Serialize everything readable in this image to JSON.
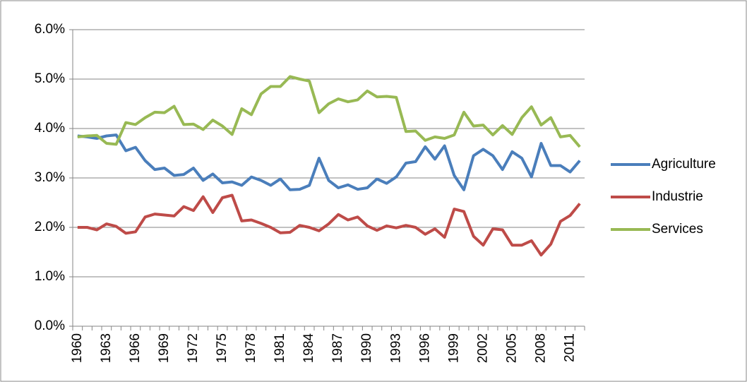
{
  "chart_data": {
    "type": "line",
    "categories": [
      "1960",
      null,
      null,
      "1963",
      null,
      null,
      "1966",
      null,
      null,
      "1969",
      null,
      null,
      "1972",
      null,
      null,
      "1975",
      null,
      null,
      "1978",
      null,
      null,
      "1981",
      null,
      null,
      "1984",
      null,
      null,
      "1987",
      null,
      null,
      "1990",
      null,
      null,
      "1993",
      null,
      null,
      "1996",
      null,
      null,
      "1999",
      null,
      null,
      "2002",
      null,
      null,
      "2005",
      null,
      null,
      "2008",
      null,
      null,
      "2011",
      null
    ],
    "series": [
      {
        "name": "Agriculture",
        "color": "#4a7ebb",
        "values": [
          3.85,
          3.83,
          3.8,
          3.85,
          3.87,
          3.55,
          3.62,
          3.35,
          3.17,
          3.2,
          3.05,
          3.07,
          3.2,
          2.95,
          3.08,
          2.9,
          2.92,
          2.85,
          3.02,
          2.95,
          2.85,
          2.98,
          2.76,
          2.77,
          2.85,
          3.4,
          2.95,
          2.8,
          2.86,
          2.77,
          2.8,
          2.98,
          2.89,
          3.02,
          3.3,
          3.33,
          3.63,
          3.38,
          3.65,
          3.05,
          2.76,
          3.45,
          3.58,
          3.45,
          3.17,
          3.53,
          3.4,
          3.02,
          3.7,
          3.25,
          3.25,
          3.12,
          3.35
        ]
      },
      {
        "name": "Industrie",
        "color": "#be4b48",
        "values": [
          2.0,
          2.0,
          1.95,
          2.07,
          2.02,
          1.88,
          1.91,
          2.21,
          2.27,
          2.25,
          2.23,
          2.42,
          2.34,
          2.62,
          2.3,
          2.6,
          2.65,
          2.13,
          2.15,
          2.08,
          2.0,
          1.89,
          1.9,
          2.04,
          2.0,
          1.93,
          2.07,
          2.26,
          2.15,
          2.21,
          2.03,
          1.94,
          2.03,
          1.99,
          2.04,
          2.0,
          1.86,
          1.97,
          1.8,
          2.37,
          2.32,
          1.82,
          1.64,
          1.97,
          1.95,
          1.64,
          1.64,
          1.73,
          1.44,
          1.66,
          2.12,
          2.24,
          2.48
        ]
      },
      {
        "name": "Services",
        "color": "#98b954",
        "values": [
          3.83,
          3.85,
          3.86,
          3.7,
          3.68,
          4.12,
          4.08,
          4.22,
          4.33,
          4.32,
          4.45,
          4.08,
          4.09,
          3.98,
          4.17,
          4.05,
          3.88,
          4.4,
          4.28,
          4.7,
          4.85,
          4.85,
          5.05,
          5.0,
          4.96,
          4.32,
          4.5,
          4.6,
          4.54,
          4.58,
          4.76,
          4.64,
          4.65,
          4.63,
          3.94,
          3.95,
          3.76,
          3.83,
          3.8,
          3.87,
          4.33,
          4.05,
          4.07,
          3.87,
          4.06,
          3.88,
          4.22,
          4.44,
          4.07,
          4.22,
          3.83,
          3.86,
          3.63
        ]
      }
    ],
    "ylim": [
      0,
      6
    ],
    "yticks": [
      {
        "value": 0,
        "label": "0.0%"
      },
      {
        "value": 1,
        "label": "1.0%"
      },
      {
        "value": 2,
        "label": "2.0%"
      },
      {
        "value": 3,
        "label": "3.0%"
      },
      {
        "value": 4,
        "label": "4.0%"
      },
      {
        "value": 5,
        "label": "5.0%"
      },
      {
        "value": 6,
        "label": "6.0%"
      }
    ],
    "grid": true,
    "legend": "right"
  }
}
